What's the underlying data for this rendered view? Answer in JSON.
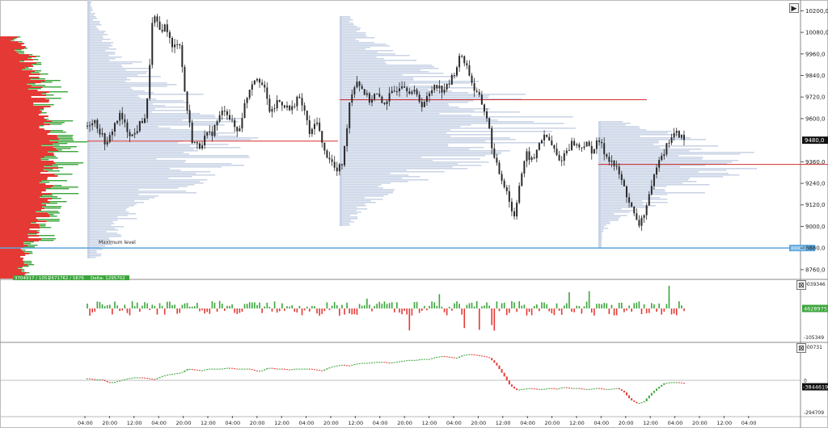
{
  "chart_data": [
    {
      "type": "candlestick",
      "panel": "price",
      "y_ticks": [
        "10200,0",
        "10080,0",
        "9960,0",
        "9840,0",
        "9720,0",
        "9600,0",
        "9360,0",
        "9240,0",
        "9120,0",
        "9000,0",
        "8880,0",
        "8760,0"
      ],
      "y_tick_values": [
        10200,
        10080,
        9960,
        9840,
        9720,
        9600,
        9360,
        9240,
        9120,
        9000,
        8880,
        8760
      ],
      "ylim": [
        8710,
        10260
      ],
      "current_price_label": "9480,0",
      "current_price": 9480,
      "level_label": "8880,0",
      "level_value": 8880,
      "maximum_level_text": "Maximum level",
      "volume_stat": "3704917 / 1051",
      "volume_stat2": "2671762 / 5876",
      "delta_text": "Delta: 1295702",
      "poc_levels": [
        {
          "session": 1,
          "price": 9475
        },
        {
          "session": 2,
          "price": 9705
        },
        {
          "session": 3,
          "price": 9345
        }
      ],
      "sessions_ohlc_path_prices": [
        9560,
        9600,
        9520,
        9450,
        9560,
        9620,
        9540,
        9500,
        9570,
        9620,
        10180,
        10090,
        10120,
        9980,
        10050,
        9700,
        9480,
        9440,
        9500,
        9520,
        9600,
        9660,
        9580,
        9520,
        9680,
        9800,
        9840,
        9760,
        9620,
        9700,
        9680,
        9640,
        9720,
        9660,
        9500,
        9600,
        9420,
        9380,
        9300,
        9360,
        9700,
        9820,
        9760,
        9700,
        9740,
        9680,
        9720,
        9760,
        9800,
        9760,
        9740,
        9680,
        9720,
        9800,
        9760,
        9780,
        9860,
        9960,
        9880,
        9760,
        9700,
        9600,
        9380,
        9280,
        9200,
        9040,
        9260,
        9400,
        9360,
        9480,
        9500,
        9440,
        9360,
        9420,
        9470,
        9440,
        9460,
        9420,
        9480,
        9400,
        9360,
        9300,
        9200,
        9100,
        9000,
        9080,
        9200,
        9380,
        9420,
        9500,
        9520,
        9480
      ]
    },
    {
      "type": "bar",
      "panel": "delta",
      "label_top": "9039346",
      "label_bottom": "-105349",
      "current_label": "4628975",
      "value": 4628975
    },
    {
      "type": "line",
      "panel": "cumulative-delta",
      "label_top": "300731",
      "label_zero": "0",
      "label_bottom": "-294709",
      "current_label": "-3844619",
      "value": -3844619,
      "path": [
        2,
        1,
        1,
        -2,
        -2,
        0,
        2,
        3,
        3,
        2,
        1,
        4,
        6,
        7,
        8,
        12,
        11,
        10,
        12,
        12,
        12,
        13,
        12,
        12,
        12,
        10,
        10,
        13,
        12,
        12,
        11,
        12,
        12,
        12,
        11,
        10,
        13,
        15,
        16,
        15,
        17,
        18,
        18,
        19,
        19,
        18,
        19,
        20,
        21,
        21,
        22,
        22,
        24,
        25,
        24,
        23,
        26,
        27,
        26,
        25,
        23,
        16,
        6,
        -5,
        -10,
        -9,
        -8,
        -9,
        -9,
        -8,
        -9,
        -7,
        -8,
        -8,
        -9,
        -9,
        -8,
        -9,
        -9,
        -8,
        -12,
        -20,
        -24,
        -22,
        -14,
        -8,
        -3,
        -2,
        -2,
        -3
      ]
    }
  ],
  "x_ticks": [
    "04:00",
    "20:00",
    "12:00",
    "04:00",
    "20:00",
    "12:00",
    "04:00",
    "20:00",
    "12:00",
    "04:00",
    "20:00",
    "12:00",
    "04:00",
    "20:00",
    "12:00",
    "04:00",
    "20:00",
    "12:00",
    "04:00",
    "20:00",
    "12:00",
    "04:00",
    "20:00",
    "12:00",
    "04:00",
    "20:00",
    "12:00",
    "04:00"
  ],
  "buttons": {
    "play": "▶",
    "close": "⊠"
  },
  "colors": {
    "up": "#3aa53a",
    "down": "#e53935",
    "profile": "#c8d3e6",
    "poc": "#d32f2f",
    "level": "#5aa7de",
    "candle": "#2a2a2a"
  }
}
